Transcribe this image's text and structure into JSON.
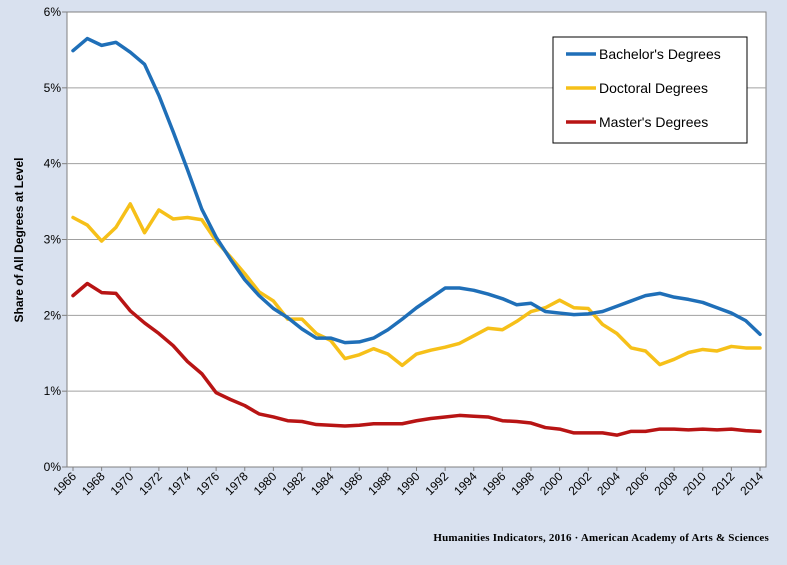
{
  "source_note": "Humanities Indicators, 2016 · American Academy of Arts & Sciences",
  "chart_data": {
    "type": "line",
    "title": "",
    "xlabel": "",
    "ylabel": "Share of All Degrees at Level",
    "x": [
      1966,
      1967,
      1968,
      1969,
      1970,
      1971,
      1972,
      1973,
      1974,
      1975,
      1976,
      1977,
      1978,
      1979,
      1980,
      1981,
      1982,
      1983,
      1984,
      1985,
      1986,
      1987,
      1988,
      1989,
      1990,
      1991,
      1992,
      1993,
      1994,
      1995,
      1996,
      1997,
      1998,
      1999,
      2000,
      2001,
      2002,
      2003,
      2004,
      2005,
      2006,
      2007,
      2008,
      2009,
      2010,
      2011,
      2012,
      2013,
      2014
    ],
    "x_tick_labels": [
      "1966",
      "1968",
      "1970",
      "1972",
      "1974",
      "1976",
      "1978",
      "1980",
      "1982",
      "1984",
      "1986",
      "1988",
      "1990",
      "1992",
      "1994",
      "1996",
      "1998",
      "2000",
      "2002",
      "2004",
      "2006",
      "2008",
      "2010",
      "2012",
      "2014"
    ],
    "ylim": [
      0,
      6
    ],
    "y_tick_labels": [
      "0%",
      "1%",
      "2%",
      "3%",
      "4%",
      "5%",
      "6%"
    ],
    "grid": "horizontal",
    "legend_position": "top-right",
    "series": [
      {
        "name": "Bachelor's Degrees",
        "color": "#1f6fb8",
        "values": [
          5.49,
          5.65,
          5.56,
          5.6,
          5.47,
          5.31,
          4.9,
          4.42,
          3.92,
          3.4,
          3.03,
          2.74,
          2.47,
          2.26,
          2.09,
          1.97,
          1.82,
          1.7,
          1.7,
          1.64,
          1.65,
          1.7,
          1.81,
          1.95,
          2.1,
          2.23,
          2.36,
          2.36,
          2.33,
          2.28,
          2.22,
          2.14,
          2.16,
          2.05,
          2.03,
          2.01,
          2.02,
          2.05,
          2.12,
          2.19,
          2.26,
          2.29,
          2.24,
          2.21,
          2.17,
          2.1,
          2.03,
          1.93,
          1.75
        ]
      },
      {
        "name": "Doctoral Degrees",
        "color": "#f6c019",
        "values": [
          3.29,
          3.19,
          2.98,
          3.16,
          3.47,
          3.09,
          3.39,
          3.27,
          3.29,
          3.26,
          2.98,
          2.77,
          2.55,
          2.31,
          2.19,
          1.95,
          1.95,
          1.76,
          1.67,
          1.43,
          1.48,
          1.56,
          1.49,
          1.34,
          1.49,
          1.54,
          1.58,
          1.63,
          1.73,
          1.83,
          1.81,
          1.92,
          2.05,
          2.1,
          2.2,
          2.1,
          2.09,
          1.88,
          1.76,
          1.57,
          1.53,
          1.35,
          1.42,
          1.51,
          1.55,
          1.53,
          1.59,
          1.57,
          1.57
        ]
      },
      {
        "name": "Master's Degrees",
        "color": "#b81414",
        "values": [
          2.26,
          2.42,
          2.3,
          2.29,
          2.06,
          1.9,
          1.76,
          1.6,
          1.39,
          1.23,
          0.98,
          0.89,
          0.81,
          0.7,
          0.66,
          0.61,
          0.6,
          0.56,
          0.55,
          0.54,
          0.55,
          0.57,
          0.57,
          0.57,
          0.61,
          0.64,
          0.66,
          0.68,
          0.67,
          0.66,
          0.61,
          0.6,
          0.58,
          0.52,
          0.5,
          0.45,
          0.45,
          0.45,
          0.42,
          0.47,
          0.47,
          0.5,
          0.5,
          0.49,
          0.5,
          0.49,
          0.5,
          0.48,
          0.47
        ]
      }
    ]
  }
}
